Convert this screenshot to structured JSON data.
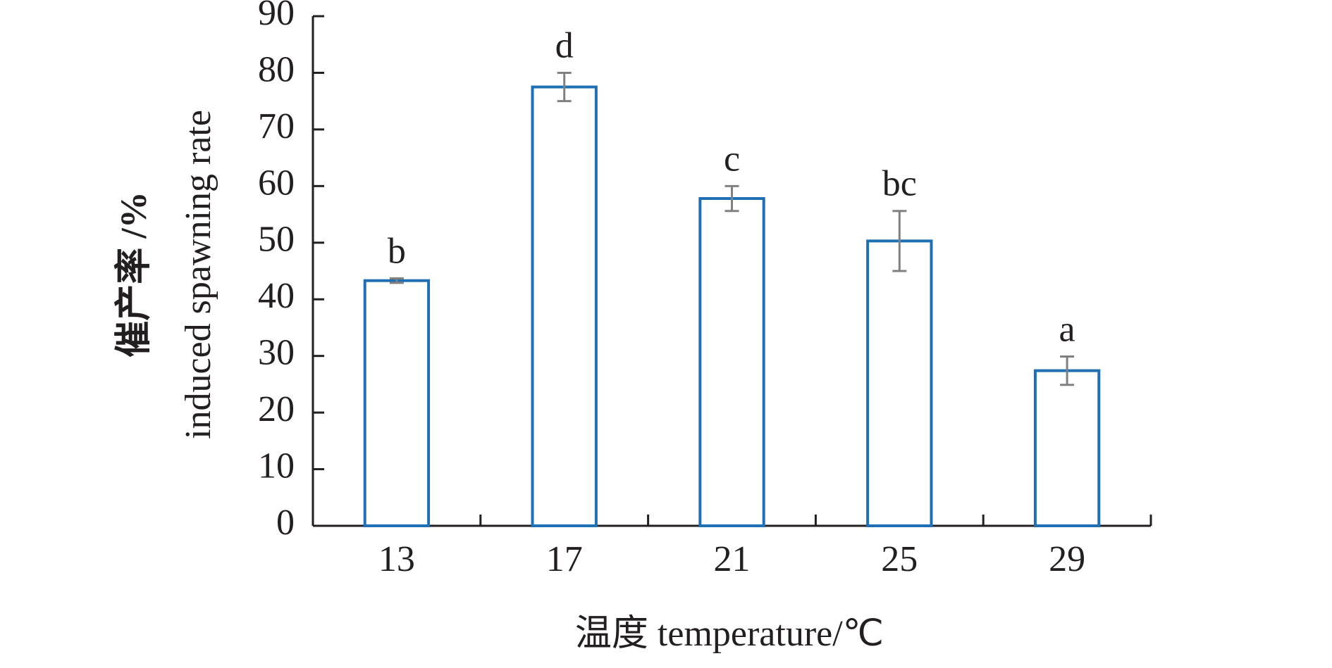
{
  "chart_data": {
    "type": "bar",
    "x_label": "温度 temperature/℃",
    "y_label": [
      "催产率 /%",
      "induced spawning rate"
    ],
    "categories": [
      "13",
      "17",
      "21",
      "25",
      "29"
    ],
    "values": [
      43.3,
      77.5,
      57.8,
      50.3,
      27.4
    ],
    "errors": [
      0.4,
      2.5,
      2.2,
      5.3,
      2.5
    ],
    "significance_labels": [
      "b",
      "d",
      "c",
      "bc",
      "a"
    ],
    "color": "#1f6fb4",
    "error_color": "#808080",
    "ylim": [
      0,
      90
    ],
    "yticks": [
      0,
      10,
      20,
      30,
      40,
      50,
      60,
      70,
      80,
      90
    ]
  }
}
